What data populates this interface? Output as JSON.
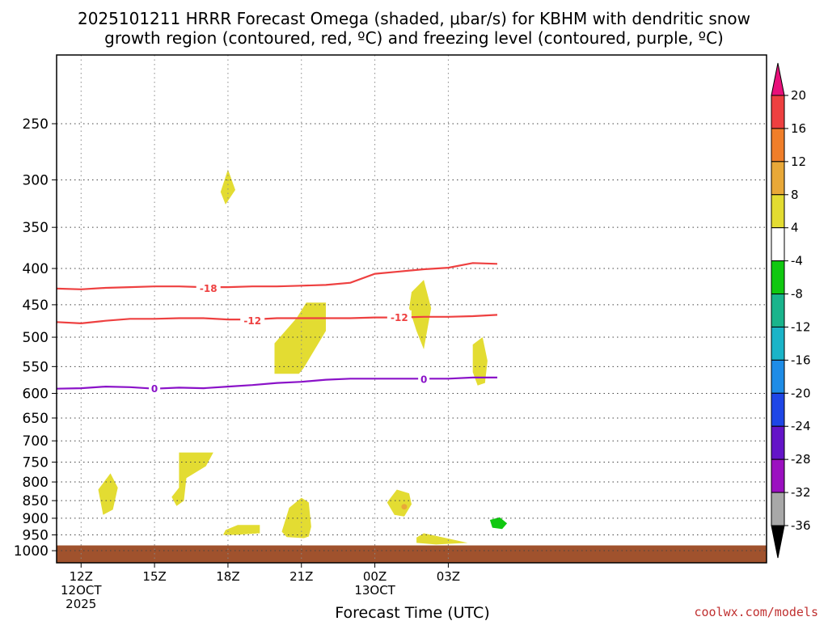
{
  "title_line1": "2025101211 HRRR Forecast Omega (shaded, μbar/s) for KBHM with dendritic snow",
  "title_line2": "growth region (contoured, red, ºC) and freezing level (contoured, purple, ºC)",
  "credit": "coolwx.com/models",
  "chart_data": {
    "type": "heatmap",
    "title": "2025101211 HRRR Forecast Omega (shaded, μbar/s) for KBHM with dendritic snow growth region (contoured, red, ºC) and freezing level (contoured, purple, ºC)",
    "xlabel": "Forecast Time (UTC)",
    "ylabel": "",
    "x_domain_hours": [
      11,
      40
    ],
    "ylim_hpa": [
      1040,
      200
    ],
    "y_scale": "log-pressure",
    "grid": true,
    "y_ticks": [
      250,
      300,
      350,
      400,
      450,
      500,
      550,
      600,
      650,
      700,
      750,
      800,
      850,
      900,
      950,
      1000
    ],
    "x_ticks": [
      {
        "hour": 12,
        "lines": [
          "12Z",
          "12OCT",
          "2025"
        ]
      },
      {
        "hour": 15,
        "lines": [
          "15Z"
        ]
      },
      {
        "hour": 18,
        "lines": [
          "18Z"
        ]
      },
      {
        "hour": 21,
        "lines": [
          "21Z"
        ]
      },
      {
        "hour": 24,
        "lines": [
          "00Z",
          "13OCT"
        ]
      },
      {
        "hour": 27,
        "lines": [
          "03Z"
        ]
      }
    ],
    "colorbar": {
      "labels": [
        "20",
        "16",
        "12",
        "8",
        "4",
        "-4",
        "-8",
        "-12",
        "-16",
        "-20",
        "-24",
        "-28",
        "-32",
        "-36"
      ],
      "colors": [
        "#e8107a",
        "#ee4040",
        "#f07e2a",
        "#e8a838",
        "#e3dc32",
        "#ffffff",
        "#10c810",
        "#19b48c",
        "#1ab4c8",
        "#1e8ce6",
        "#1e46e6",
        "#6414c8",
        "#9b10c0",
        "#a8a8a8",
        "#000000"
      ]
    },
    "contours": [
      {
        "kind": "dgz",
        "label": "-18",
        "color": "#ee4040",
        "points": [
          [
            11,
            427
          ],
          [
            12,
            428
          ],
          [
            13,
            426
          ],
          [
            14,
            425
          ],
          [
            15,
            424
          ],
          [
            16,
            424
          ],
          [
            17,
            425
          ],
          [
            18,
            425
          ],
          [
            19,
            424
          ],
          [
            20,
            424
          ],
          [
            21,
            423
          ],
          [
            22,
            422
          ],
          [
            23,
            419
          ],
          [
            24,
            407
          ],
          [
            25,
            404
          ],
          [
            26,
            401
          ],
          [
            27,
            399
          ],
          [
            28,
            393
          ],
          [
            29,
            394
          ]
        ],
        "label_at": [
          17.2,
          426
        ]
      },
      {
        "kind": "dgz",
        "label": "-12",
        "color": "#ee4040",
        "points": [
          [
            11,
            476
          ],
          [
            12,
            478
          ],
          [
            13,
            474
          ],
          [
            14,
            471
          ],
          [
            15,
            471
          ],
          [
            16,
            470
          ],
          [
            17,
            470
          ],
          [
            18,
            472
          ],
          [
            19,
            472
          ],
          [
            20,
            470
          ],
          [
            21,
            470
          ],
          [
            22,
            470
          ],
          [
            23,
            470
          ],
          [
            24,
            469
          ],
          [
            25,
            469
          ],
          [
            26,
            468
          ],
          [
            27,
            468
          ],
          [
            28,
            467
          ],
          [
            29,
            465
          ]
        ],
        "label_at": [
          19.0,
          473
        ]
      },
      {
        "kind": "freezing",
        "label": "0",
        "color": "#8a12c8",
        "points": [
          [
            11,
            591
          ],
          [
            12,
            590
          ],
          [
            13,
            587
          ],
          [
            14,
            588
          ],
          [
            15,
            591
          ],
          [
            16,
            589
          ],
          [
            17,
            590
          ],
          [
            18,
            587
          ],
          [
            19,
            584
          ],
          [
            20,
            580
          ],
          [
            21,
            578
          ],
          [
            22,
            574
          ],
          [
            23,
            572
          ],
          [
            24,
            572
          ],
          [
            25,
            572
          ],
          [
            26,
            572
          ],
          [
            27,
            572
          ],
          [
            28,
            570
          ],
          [
            29,
            570
          ]
        ],
        "label_at": [
          15.0,
          590
        ]
      }
    ],
    "contour_label_extra": [
      {
        "label": "-12",
        "at": [
          25.0,
          468
        ],
        "color": "#ee4040"
      },
      {
        "label": "0",
        "at": [
          26.0,
          572
        ],
        "color": "#8a12c8"
      }
    ],
    "omega_regions": [
      {
        "name": "upper-blob",
        "level": "4",
        "points": [
          [
            18.0,
            290
          ],
          [
            17.7,
            312
          ],
          [
            17.9,
            325
          ],
          [
            18.3,
            310
          ]
        ]
      },
      {
        "name": "mid-blob-21z",
        "level": "4",
        "points": [
          [
            19.9,
            510
          ],
          [
            19.9,
            563
          ],
          [
            20.9,
            563
          ],
          [
            21.1,
            552
          ],
          [
            22.0,
            490
          ],
          [
            22.0,
            447
          ],
          [
            21.2,
            447
          ],
          [
            20.8,
            470
          ]
        ]
      },
      {
        "name": "mid-blob-02z",
        "level": "4",
        "points": [
          [
            25.5,
            432
          ],
          [
            26.0,
            415
          ],
          [
            26.3,
            455
          ],
          [
            26.0,
            520
          ],
          [
            25.7,
            490
          ],
          [
            25.4,
            455
          ]
        ]
      },
      {
        "name": "mid-blob-04z",
        "level": "4",
        "points": [
          [
            28.0,
            512
          ],
          [
            28.4,
            500
          ],
          [
            28.6,
            540
          ],
          [
            28.5,
            580
          ],
          [
            28.2,
            585
          ],
          [
            28.0,
            560
          ]
        ]
      },
      {
        "name": "low-blob-13z",
        "level": "4",
        "points": [
          [
            13.2,
            778
          ],
          [
            12.7,
            820
          ],
          [
            12.9,
            890
          ],
          [
            13.3,
            875
          ],
          [
            13.5,
            815
          ]
        ]
      },
      {
        "name": "low-blob-16z",
        "level": "4",
        "points": [
          [
            16.0,
            727
          ],
          [
            16.0,
            815
          ],
          [
            15.7,
            840
          ],
          [
            15.9,
            865
          ],
          [
            16.2,
            850
          ],
          [
            16.3,
            790
          ],
          [
            17.1,
            760
          ],
          [
            17.4,
            727
          ]
        ]
      },
      {
        "name": "low-blob-18z",
        "level": "4",
        "points": [
          [
            17.8,
            950
          ],
          [
            17.9,
            935
          ],
          [
            18.4,
            920
          ],
          [
            19.3,
            920
          ],
          [
            19.3,
            945
          ],
          [
            18.3,
            950
          ]
        ]
      },
      {
        "name": "low-blob-21z",
        "level": "4",
        "points": [
          [
            20.2,
            940
          ],
          [
            20.5,
            870
          ],
          [
            21.0,
            842
          ],
          [
            21.3,
            855
          ],
          [
            21.4,
            925
          ],
          [
            21.3,
            955
          ],
          [
            21.1,
            960
          ],
          [
            20.4,
            957
          ]
        ]
      },
      {
        "name": "low-blob-01z",
        "level": "4",
        "points": [
          [
            24.5,
            855
          ],
          [
            24.9,
            820
          ],
          [
            25.4,
            830
          ],
          [
            25.5,
            860
          ],
          [
            25.2,
            895
          ],
          [
            24.8,
            890
          ]
        ]
      },
      {
        "name": "low-blob-03z",
        "level": "4",
        "points": [
          [
            25.7,
            958
          ],
          [
            26.0,
            945
          ],
          [
            26.8,
            958
          ],
          [
            27.8,
            975
          ],
          [
            26.5,
            980
          ],
          [
            25.7,
            975
          ]
        ]
      },
      {
        "name": "neg-blob-04z",
        "level": "-4",
        "points": [
          [
            28.7,
            905
          ],
          [
            29.1,
            897
          ],
          [
            29.4,
            915
          ],
          [
            29.2,
            932
          ],
          [
            28.8,
            928
          ]
        ]
      }
    ],
    "omega_spots": [
      {
        "name": "orange-spot",
        "level": "8",
        "at": [
          25.2,
          867
        ]
      }
    ],
    "surface": {
      "color": "#a0522d",
      "top_hpa": 983,
      "bottom_hpa": 1040
    }
  }
}
